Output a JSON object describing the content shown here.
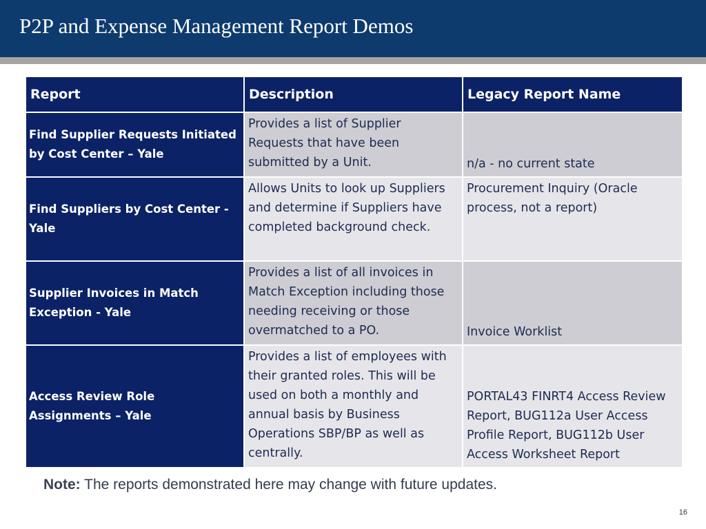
{
  "slide": {
    "title": "P2P and Expense Management Report Demos",
    "page_number": "16"
  },
  "table": {
    "headers": [
      "Report",
      "Description",
      "Legacy Report Name"
    ],
    "rows": [
      {
        "report": "Find Supplier Requests Initiated by Cost Center – Yale",
        "description": "Provides a list of Supplier Requests that have been submitted by a Unit.",
        "legacy": "n/a - no current state"
      },
      {
        "report": "Find Suppliers by Cost Center - Yale",
        "description": "Allows Units to look up Suppliers and determine if Suppliers have completed background check.",
        "legacy": "Procurement Inquiry (Oracle process, not a report)"
      },
      {
        "report": "Supplier Invoices in Match Exception - Yale",
        "description": "Provides a list of all invoices in Match Exception including those needing receiving or those overmatched to a PO.",
        "legacy": "Invoice Worklist"
      },
      {
        "report": "Access Review Role Assignments – Yale",
        "description": "Provides a list of employees with their granted roles.  This will be used on both a monthly and annual basis by Business Operations SBP/BP as well as centrally.",
        "legacy": "PORTAL43 FINRT4 Access Review Report, BUG112a User Access Profile Report, BUG112b User Access Worksheet Report"
      }
    ]
  },
  "note": {
    "label": "Note:",
    "text": " The reports demonstrated here may change with future updates."
  },
  "colors": {
    "title_bar": "#0e3b6e",
    "title_rule": "#a6a49f",
    "header_navy": "#0c2266",
    "row_gray_dark": "#cdcdd3",
    "row_gray_light": "#e6e6ea"
  }
}
